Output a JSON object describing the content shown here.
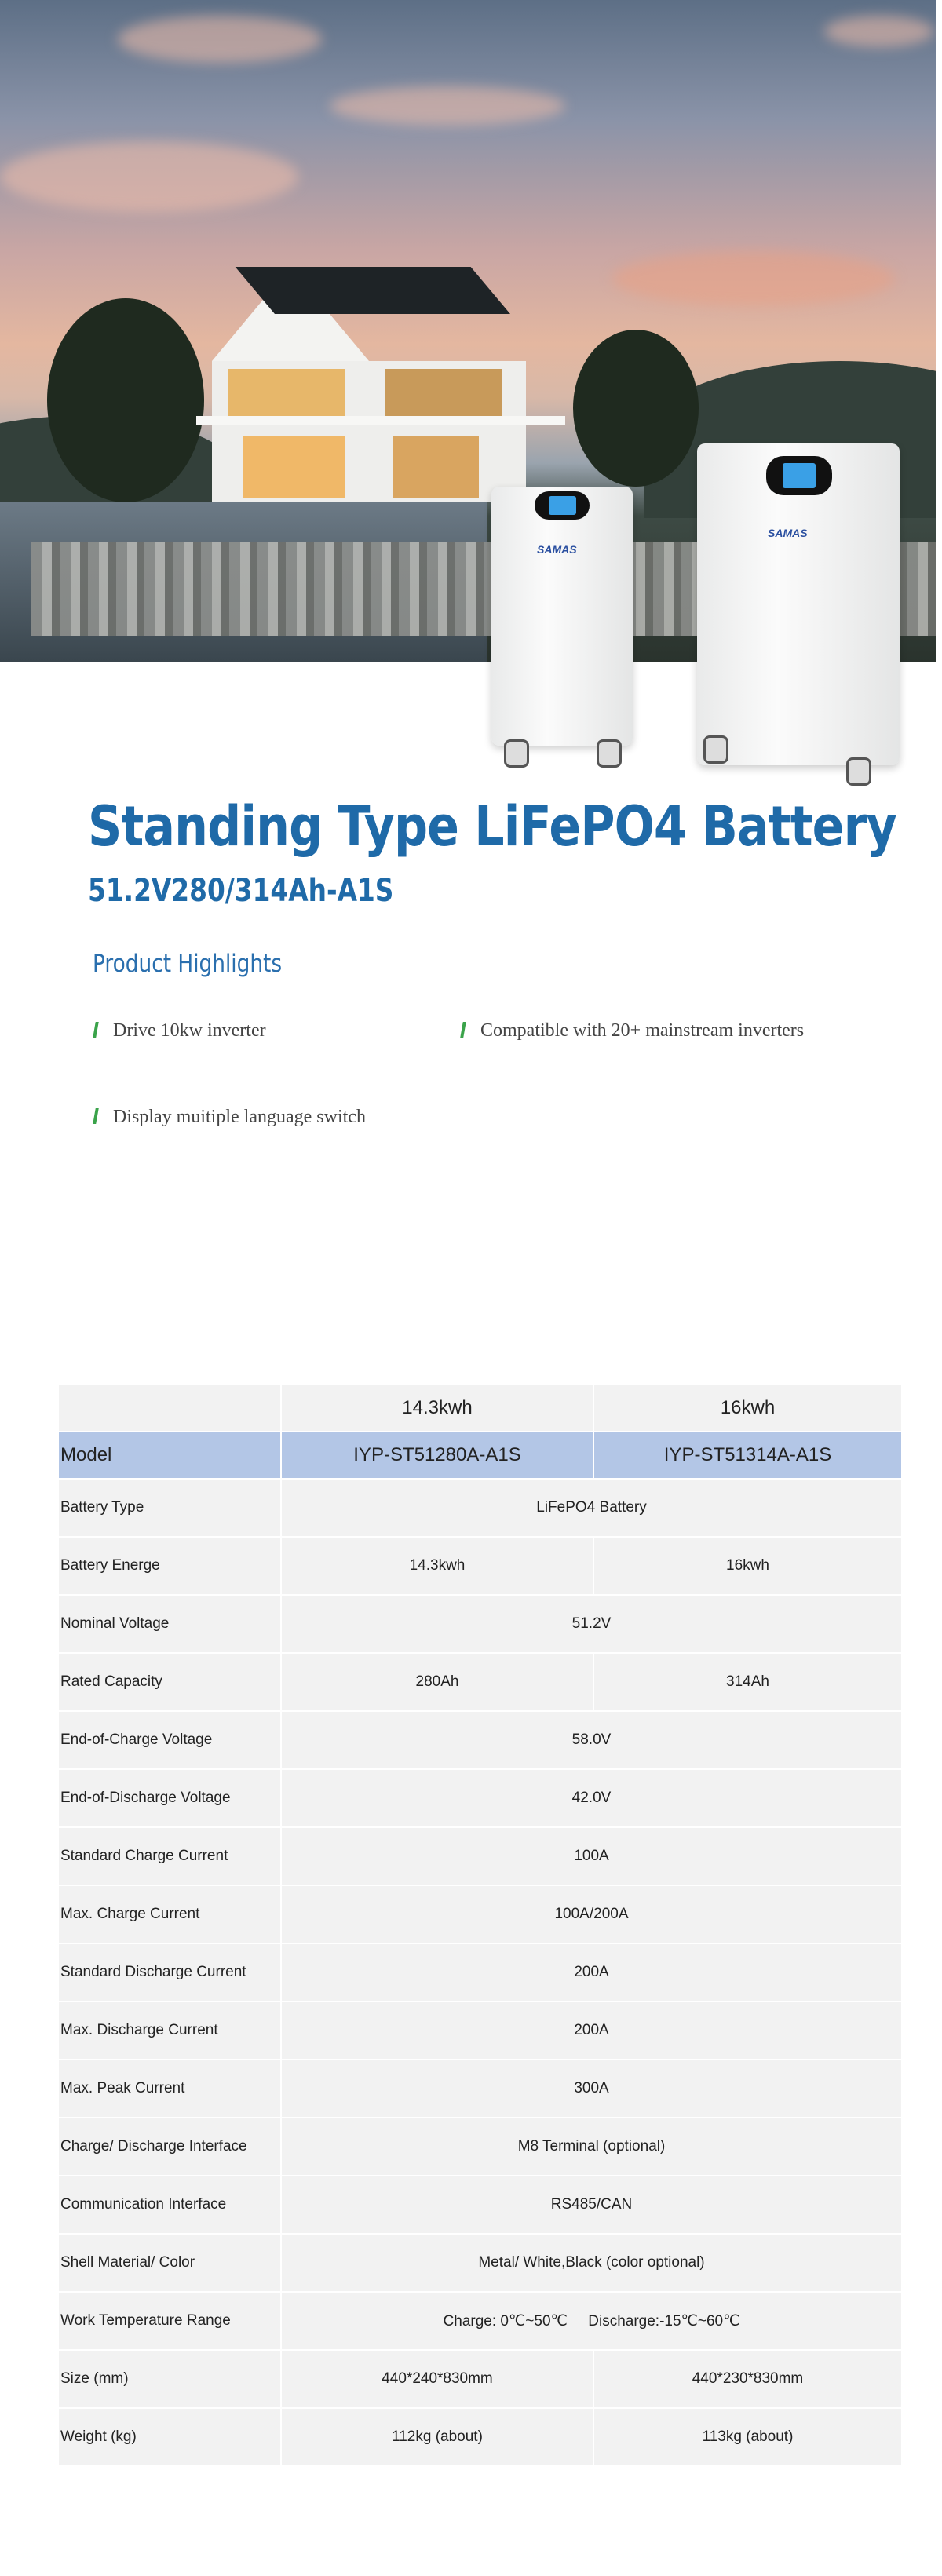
{
  "hero": {
    "brand_text": "SAMAS"
  },
  "title": "Standing Type LiFePO4 Battery",
  "subtitle": "51.2V280/314Ah-A1S",
  "highlights": {
    "heading": "Product Highlights",
    "items": [
      "Drive 10kw inverter",
      "Compatible with 20+ mainstream inverters",
      "Display muitiple language switch"
    ],
    "accent_color": "#3aa34a"
  },
  "spec_table": {
    "header": [
      "",
      "14.3kwh",
      "16kwh"
    ],
    "model": [
      "Model",
      "IYP-ST51280A-A1S",
      "IYP-ST51314A-A1S"
    ],
    "rows": [
      {
        "label": "Battery Type",
        "values": [
          "LiFePO4 Battery"
        ]
      },
      {
        "label": "Battery Energe",
        "values": [
          "14.3kwh",
          "16kwh"
        ]
      },
      {
        "label": "Nominal Voltage",
        "values": [
          "51.2V"
        ]
      },
      {
        "label": "Rated Capacity",
        "values": [
          "280Ah",
          "314Ah"
        ]
      },
      {
        "label": "End-of-Charge Voltage",
        "values": [
          "58.0V"
        ]
      },
      {
        "label": "End-of-Discharge Voltage",
        "values": [
          "42.0V"
        ]
      },
      {
        "label": "Standard Charge Current",
        "values": [
          "100A"
        ]
      },
      {
        "label": "Max. Charge Current",
        "values": [
          "100A/200A"
        ]
      },
      {
        "label": "Standard Discharge Current",
        "values": [
          "200A"
        ]
      },
      {
        "label": "Max. Discharge Current",
        "values": [
          "200A"
        ]
      },
      {
        "label": "Max. Peak Current",
        "values": [
          "300A"
        ]
      },
      {
        "label": "Charge/ Discharge Interface",
        "values": [
          "M8 Terminal (optional)"
        ]
      },
      {
        "label": "Communication Interface",
        "values": [
          "RS485/CAN"
        ]
      },
      {
        "label": "Shell Material/ Color",
        "values": [
          "Metal/ White,Black (color optional)"
        ]
      },
      {
        "label": "Work Temperature Range",
        "values": [
          "Charge: 0℃~50℃     Discharge:-15℃~60℃"
        ]
      },
      {
        "label": "Size (mm)",
        "values": [
          "440*240*830mm",
          "440*230*830mm"
        ]
      },
      {
        "label": "Weight (kg)",
        "values": [
          "112kg (about)",
          "113kg (about)"
        ]
      }
    ],
    "model_row_color": "#b3c6e6",
    "cell_color": "#f2f2f2"
  },
  "colors": {
    "title": "#1f6aa8"
  }
}
